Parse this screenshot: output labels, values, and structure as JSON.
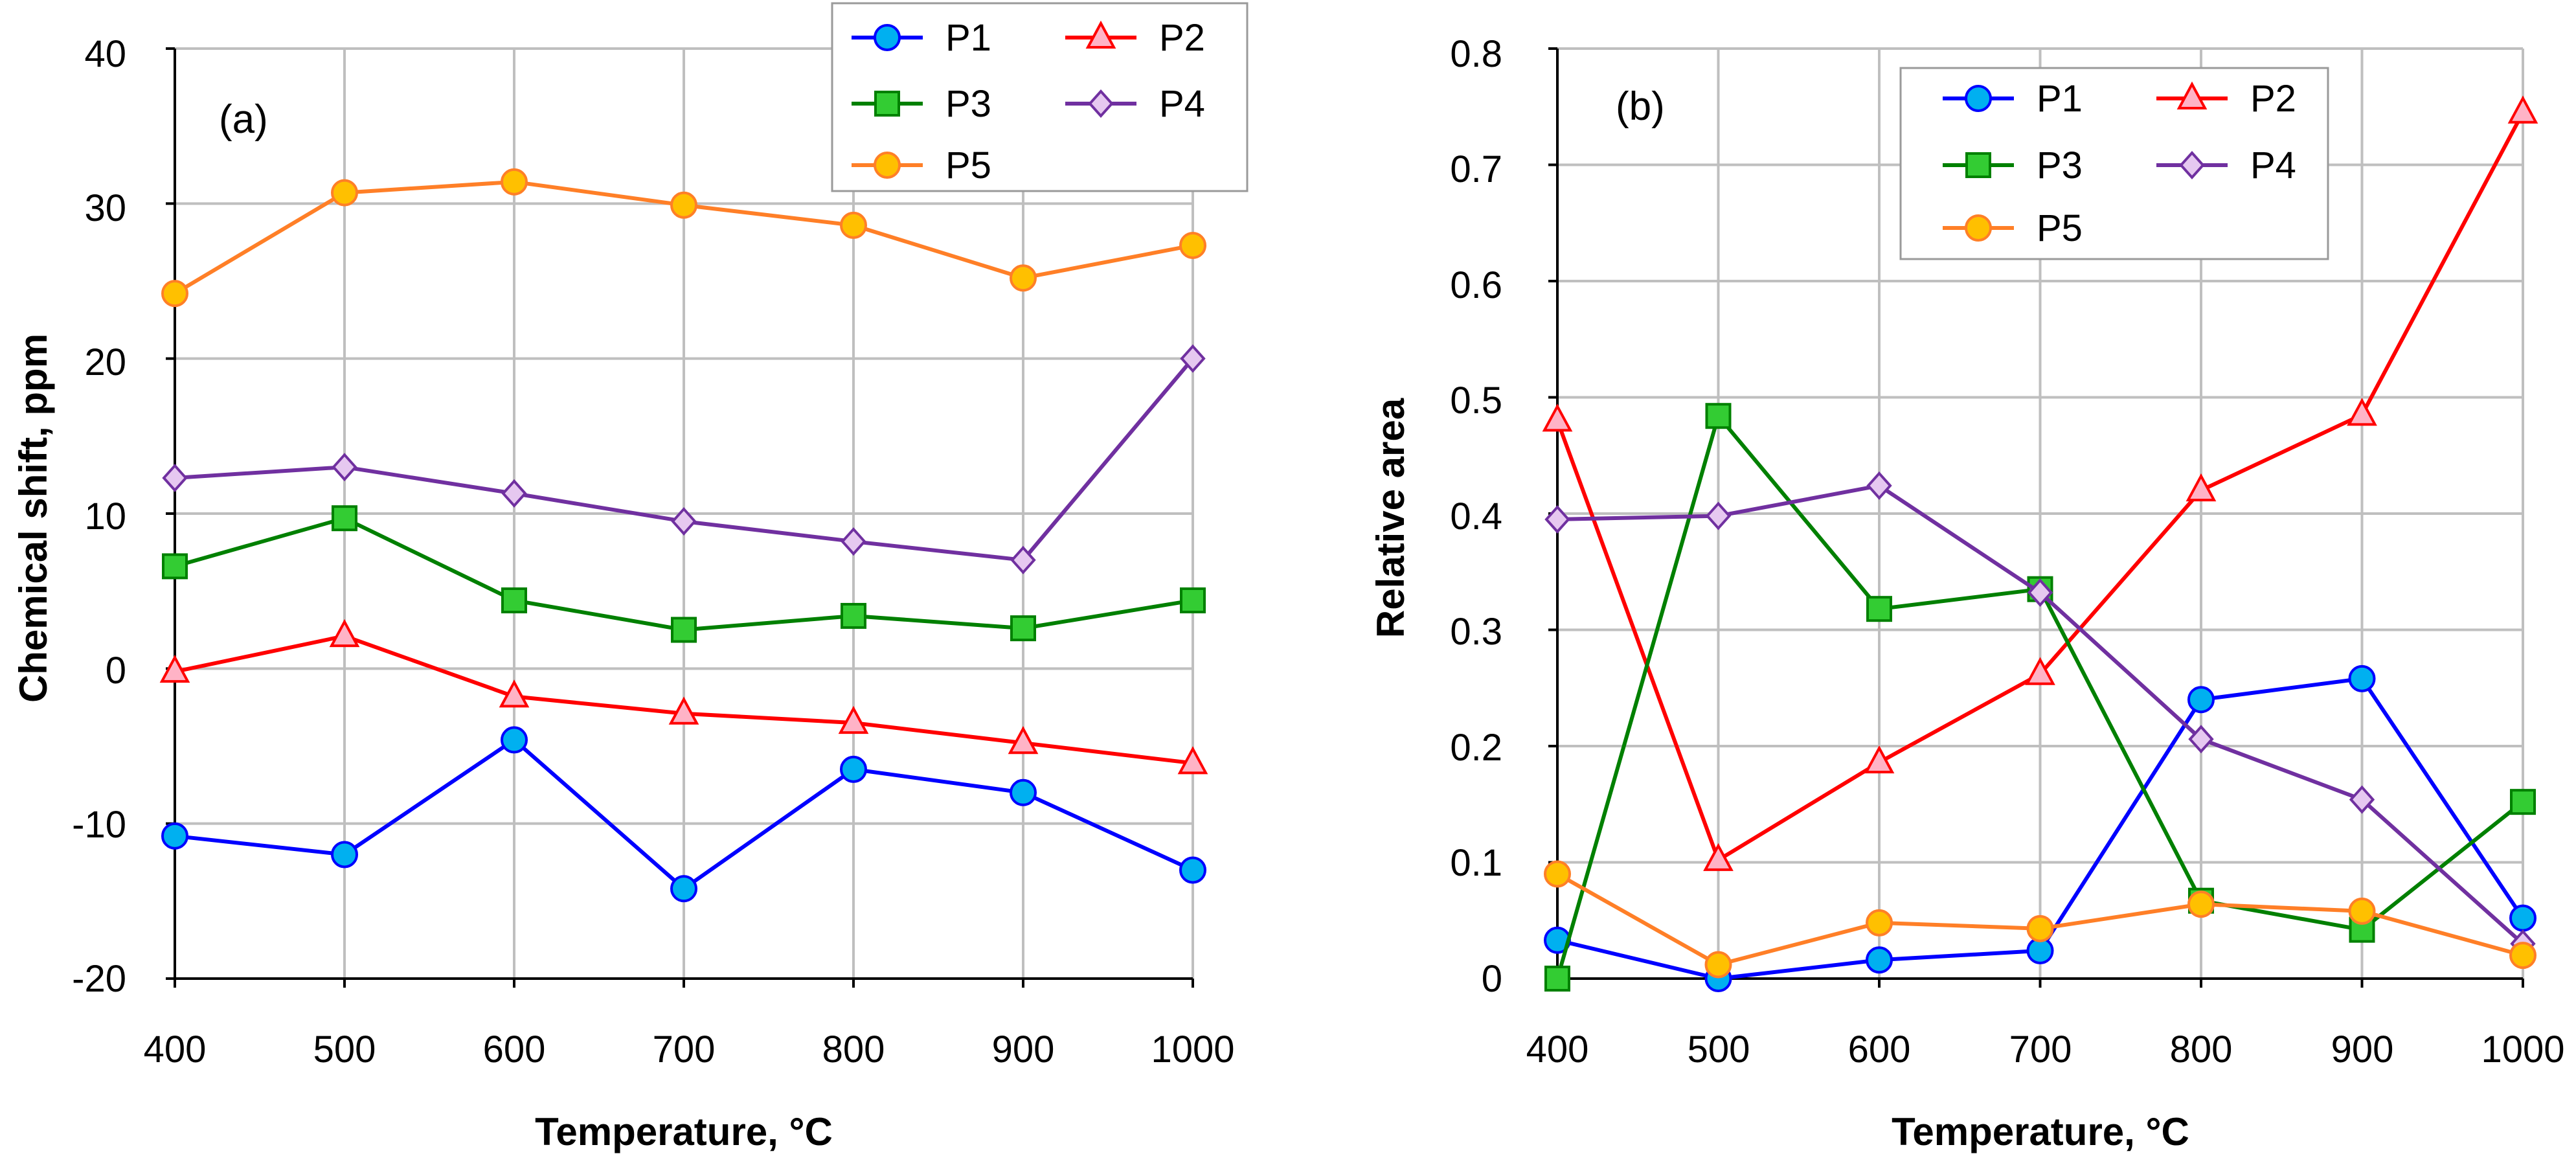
{
  "chart_data": [
    {
      "type": "line",
      "panel_label": "(a)",
      "xlabel": "Temperature, °C",
      "ylabel": "Chemical shift, ppm",
      "x": [
        400,
        500,
        600,
        700,
        800,
        900,
        1000
      ],
      "xlim": [
        400,
        1000
      ],
      "ylim": [
        -20,
        40
      ],
      "xticks": [
        400,
        500,
        600,
        700,
        800,
        900,
        1000
      ],
      "yticks": [
        -20,
        -10,
        0,
        10,
        20,
        30,
        40
      ],
      "xtick_labels": [
        "400",
        "500",
        "600",
        "700",
        "800",
        "900",
        "1000"
      ],
      "ytick_labels": [
        "-20",
        "-10",
        "0",
        "10",
        "20",
        "30",
        "40"
      ],
      "grid": true,
      "legend_position": "top-right",
      "series": [
        {
          "name": "P1",
          "values": [
            -10.8,
            -12.0,
            -4.6,
            -14.2,
            -6.5,
            -8.0,
            -13.0
          ]
        },
        {
          "name": "P2",
          "values": [
            -0.2,
            2.1,
            -1.8,
            -2.9,
            -3.5,
            -4.8,
            -6.1
          ]
        },
        {
          "name": "P3",
          "values": [
            6.6,
            9.7,
            4.4,
            2.5,
            3.4,
            2.6,
            4.4
          ]
        },
        {
          "name": "P4",
          "values": [
            12.3,
            13.0,
            11.3,
            9.5,
            8.2,
            7.0,
            20.0
          ]
        },
        {
          "name": "P5",
          "values": [
            24.2,
            30.7,
            31.4,
            29.9,
            28.6,
            25.2,
            27.3
          ]
        }
      ]
    },
    {
      "type": "line",
      "panel_label": "(b)",
      "xlabel": "Temperature, °C",
      "ylabel": "Relative area",
      "x": [
        400,
        500,
        600,
        700,
        800,
        900,
        1000
      ],
      "xlim": [
        400,
        1000
      ],
      "ylim": [
        0,
        0.8
      ],
      "xticks": [
        400,
        500,
        600,
        700,
        800,
        900,
        1000
      ],
      "yticks": [
        0,
        0.1,
        0.2,
        0.3,
        0.4,
        0.5,
        0.6,
        0.7,
        0.8
      ],
      "xtick_labels": [
        "400",
        "500",
        "600",
        "700",
        "800",
        "900",
        "1000"
      ],
      "ytick_labels": [
        "0",
        "0.1",
        "0.2",
        "0.3",
        "0.4",
        "0.5",
        "0.6",
        "0.7",
        "0.8"
      ],
      "grid": true,
      "legend_position": "top-center",
      "series": [
        {
          "name": "P1",
          "values": [
            0.033,
            0.0,
            0.016,
            0.024,
            0.24,
            0.258,
            0.052
          ]
        },
        {
          "name": "P2",
          "values": [
            0.48,
            0.102,
            0.186,
            0.262,
            0.42,
            0.485,
            0.745
          ]
        },
        {
          "name": "P3",
          "values": [
            0.0,
            0.484,
            0.318,
            0.335,
            0.067,
            0.042,
            0.152
          ]
        },
        {
          "name": "P4",
          "values": [
            0.395,
            0.398,
            0.424,
            0.332,
            0.206,
            0.154,
            0.03
          ]
        },
        {
          "name": "P5",
          "values": [
            0.09,
            0.012,
            0.048,
            0.043,
            0.064,
            0.058,
            0.02
          ]
        }
      ]
    }
  ],
  "series_styles": {
    "P1": {
      "line": "#0000ff",
      "fill": "#00b0f0",
      "marker": "circle"
    },
    "P2": {
      "line": "#ff0000",
      "fill": "#ffb3c6",
      "marker": "triangle"
    },
    "P3": {
      "line": "#008000",
      "fill": "#33cc33",
      "marker": "square"
    },
    "P4": {
      "line": "#7030a0",
      "fill": "#e6c8f0",
      "marker": "diamond"
    },
    "P5": {
      "line": "#ff7f27",
      "fill": "#ffc000",
      "marker": "circle"
    }
  },
  "colors": {
    "grid": "#bfbfbf",
    "axes": "#000000"
  }
}
